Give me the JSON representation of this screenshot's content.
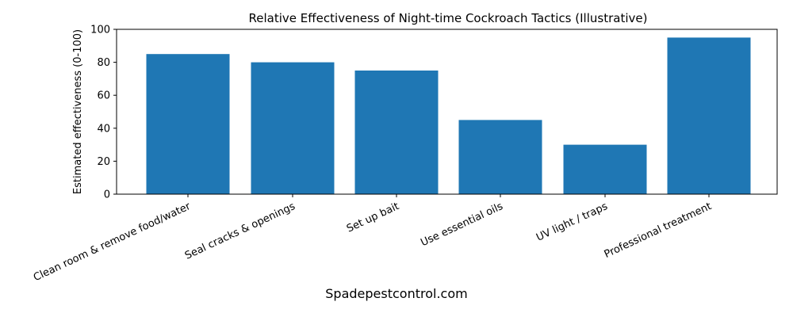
{
  "chart_data": {
    "type": "bar",
    "title": "Relative Effectiveness of Night-time Cockroach Tactics (Illustrative)",
    "xlabel": "",
    "ylabel": "Estimated effectiveness (0-100)",
    "categories": [
      "Clean room & remove food/water",
      "Seal cracks & openings",
      "Set up bait",
      "Use essential oils",
      "UV light / traps",
      "Professional treatment"
    ],
    "values": [
      85,
      80,
      75,
      45,
      30,
      95
    ],
    "ylim": [
      0,
      100
    ],
    "yticks": [
      0,
      20,
      40,
      60,
      80,
      100
    ],
    "grid": false,
    "legend": null,
    "bar_color": "#1f77b4"
  },
  "footer": {
    "watermark": "Spadepestcontrol.com"
  }
}
